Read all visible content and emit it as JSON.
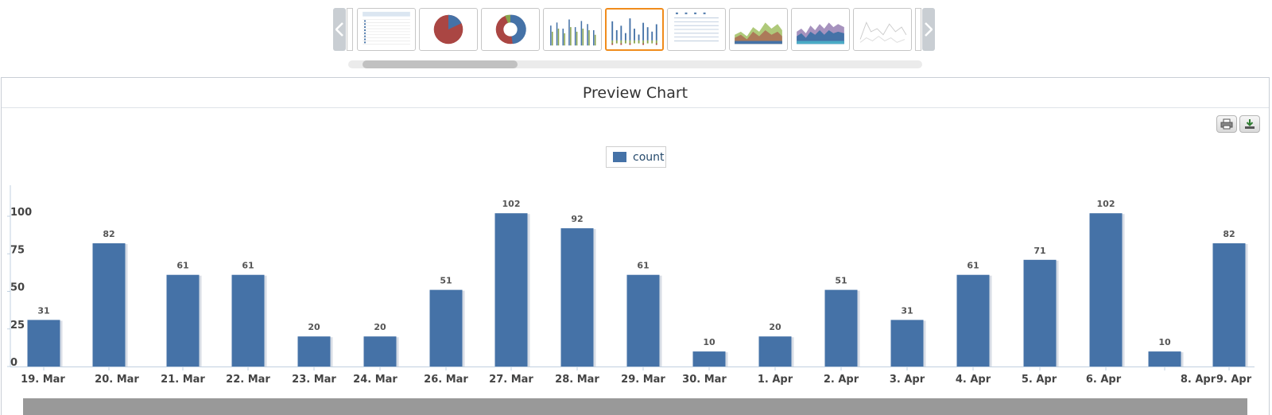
{
  "thumbnails": {
    "prev_icon": "chevron-left-icon",
    "next_icon": "chevron-right-icon",
    "items": [
      {
        "name": "thumb-table",
        "kind": "table"
      },
      {
        "name": "thumb-pie",
        "kind": "pie"
      },
      {
        "name": "thumb-donut",
        "kind": "donut"
      },
      {
        "name": "thumb-grouped-bar",
        "kind": "grouped-bar"
      },
      {
        "name": "thumb-stacked-bar",
        "kind": "stacked-bar",
        "selected": true
      },
      {
        "name": "thumb-line-list",
        "kind": "lines"
      },
      {
        "name": "thumb-area",
        "kind": "area"
      },
      {
        "name": "thumb-stacked-area",
        "kind": "stacked-area"
      },
      {
        "name": "thumb-line",
        "kind": "line"
      }
    ]
  },
  "panel": {
    "title": "Preview Chart",
    "print_icon": "print-icon",
    "export_icon": "download-icon"
  },
  "colors": {
    "bar": "#4572a7",
    "selected_border": "#f08c1c",
    "axis_text": "#444444"
  },
  "chart_data": {
    "type": "bar",
    "categories": [
      "19. Mar",
      "20. Mar",
      "21. Mar",
      "22. Mar",
      "23. Mar",
      "24. Mar",
      "26. Mar",
      "27. Mar",
      "28. Mar",
      "29. Mar",
      "30. Mar",
      "1. Apr",
      "2. Apr",
      "3. Apr",
      "4. Apr",
      "5. Apr",
      "6. Apr",
      "8. Apr",
      "9. Apr"
    ],
    "series": [
      {
        "name": "count",
        "values": [
          31,
          82,
          61,
          61,
          20,
          20,
          51,
          102,
          92,
          61,
          10,
          20,
          51,
          31,
          61,
          71,
          102,
          10,
          82
        ]
      }
    ],
    "yticks": [
      0,
      25,
      50,
      75,
      100
    ],
    "ylim": [
      0,
      104
    ],
    "legend": "top-center",
    "grid": false
  }
}
